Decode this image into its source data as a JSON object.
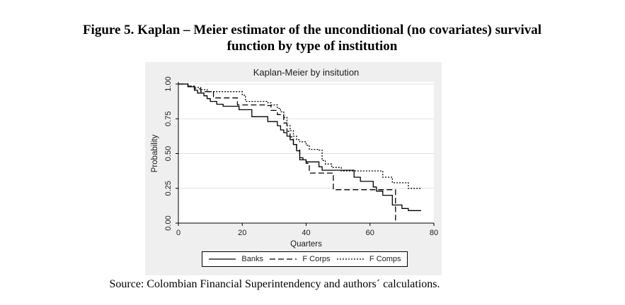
{
  "figure_caption": {
    "lines": [
      "Figure 5. Kaplan – Meier estimator of the unconditional (no covariates) survival",
      "function by type of institution"
    ]
  },
  "source_note": "Source: Colombian Financial Superintendency and authors´ calculations.",
  "colors": {
    "page_bg": "#ffffff",
    "graph_bg": "#efefef",
    "plot_bg": "#ffffff",
    "grid": "#e2e2e2",
    "axis": "#000000",
    "series_line": "#000000",
    "text": "#1c1c1c"
  },
  "chart_data": {
    "type": "line",
    "subtype": "kaplan-meier-step",
    "title": "Kaplan-Meier by insitution",
    "xlabel": "Quarters",
    "ylabel": "Probability",
    "xlim": [
      0,
      80
    ],
    "ylim": [
      0,
      1
    ],
    "x_ticks": [
      0,
      20,
      40,
      60,
      80
    ],
    "y_ticks": [
      "0.00",
      "0.25",
      "0.50",
      "0.75",
      "1.00"
    ],
    "grid": "horizontal-only",
    "legend_position": "bottom",
    "series": [
      {
        "name": "Banks",
        "line_style": "solid",
        "steps": [
          [
            0,
            1.0
          ],
          [
            3,
            0.98
          ],
          [
            5,
            0.955
          ],
          [
            6,
            0.935
          ],
          [
            8,
            0.915
          ],
          [
            9,
            0.895
          ],
          [
            10,
            0.875
          ],
          [
            12,
            0.855
          ],
          [
            14,
            0.84
          ],
          [
            19,
            0.815
          ],
          [
            23,
            0.765
          ],
          [
            28,
            0.73
          ],
          [
            31,
            0.7
          ],
          [
            32,
            0.67
          ],
          [
            33,
            0.65
          ],
          [
            34,
            0.625
          ],
          [
            35,
            0.6
          ],
          [
            36,
            0.565
          ],
          [
            37,
            0.52
          ],
          [
            38,
            0.47
          ],
          [
            39,
            0.455
          ],
          [
            40,
            0.44
          ],
          [
            44,
            0.405
          ],
          [
            45,
            0.38
          ],
          [
            55,
            0.33
          ],
          [
            57,
            0.3
          ],
          [
            61,
            0.26
          ],
          [
            62,
            0.23
          ],
          [
            64,
            0.2
          ],
          [
            67,
            0.13
          ],
          [
            70,
            0.105
          ],
          [
            72,
            0.09
          ],
          [
            76,
            0.09
          ]
        ]
      },
      {
        "name": "F Corps",
        "line_style": "long-dash",
        "steps": [
          [
            0,
            1.0
          ],
          [
            3,
            0.985
          ],
          [
            5,
            0.965
          ],
          [
            7,
            0.945
          ],
          [
            11,
            0.9
          ],
          [
            18.5,
            0.85
          ],
          [
            28,
            0.845
          ],
          [
            29,
            0.81
          ],
          [
            31,
            0.78
          ],
          [
            33,
            0.72
          ],
          [
            34,
            0.66
          ],
          [
            35,
            0.62
          ],
          [
            36,
            0.57
          ],
          [
            37,
            0.525
          ],
          [
            38,
            0.455
          ],
          [
            40,
            0.43
          ],
          [
            41,
            0.36
          ],
          [
            48.5,
            0.24
          ],
          [
            68,
            0.0
          ]
        ]
      },
      {
        "name": "F Comps",
        "line_style": "short-dash",
        "steps": [
          [
            0,
            1.0
          ],
          [
            3,
            0.985
          ],
          [
            5,
            0.975
          ],
          [
            7,
            0.96
          ],
          [
            9,
            0.945
          ],
          [
            20,
            0.92
          ],
          [
            21,
            0.875
          ],
          [
            28,
            0.865
          ],
          [
            29,
            0.85
          ],
          [
            31,
            0.825
          ],
          [
            32,
            0.8
          ],
          [
            33,
            0.76
          ],
          [
            34,
            0.7
          ],
          [
            35,
            0.665
          ],
          [
            36,
            0.625
          ],
          [
            37,
            0.6
          ],
          [
            38,
            0.585
          ],
          [
            40,
            0.56
          ],
          [
            41,
            0.53
          ],
          [
            44,
            0.525
          ],
          [
            45,
            0.45
          ],
          [
            46,
            0.425
          ],
          [
            48,
            0.4
          ],
          [
            51,
            0.375
          ],
          [
            64,
            0.33
          ],
          [
            67,
            0.29
          ],
          [
            72,
            0.25
          ],
          [
            76,
            0.25
          ]
        ]
      }
    ]
  }
}
